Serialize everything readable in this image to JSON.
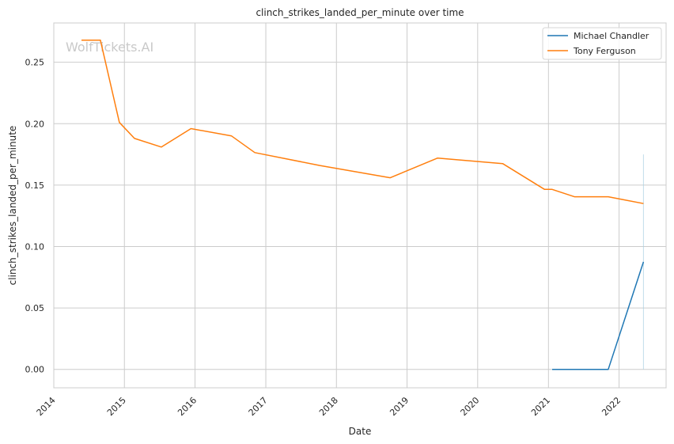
{
  "chart_data": {
    "type": "line",
    "title": "clinch_strikes_landed_per_minute over time",
    "xlabel": "Date",
    "ylabel": "clinch_strikes_landed_per_minute",
    "watermark": "WolfTickets.AI",
    "xlim": [
      "2014-01-01",
      "2022-09-01"
    ],
    "ylim": [
      -0.015,
      0.282
    ],
    "x_ticks": [
      "2014",
      "2015",
      "2016",
      "2017",
      "2018",
      "2019",
      "2020",
      "2021",
      "2022"
    ],
    "y_ticks": [
      "0.00",
      "0.05",
      "0.10",
      "0.15",
      "0.20",
      "0.25"
    ],
    "grid": true,
    "legend_position": "top-right",
    "series": [
      {
        "name": "Michael Chandler",
        "color": "#1f77b4",
        "points": [
          {
            "x": "2021-01-20",
            "y": 0.0
          },
          {
            "x": "2021-11-06",
            "y": 0.0
          },
          {
            "x": "2022-05-07",
            "y": 0.0875
          }
        ]
      },
      {
        "name": "Tony Ferguson",
        "color": "#ff7f0e",
        "points": [
          {
            "x": "2014-05-24",
            "y": 0.268
          },
          {
            "x": "2014-08-30",
            "y": 0.268
          },
          {
            "x": "2014-12-06",
            "y": 0.201
          },
          {
            "x": "2015-02-22",
            "y": 0.188
          },
          {
            "x": "2015-07-11",
            "y": 0.181
          },
          {
            "x": "2015-12-11",
            "y": 0.196
          },
          {
            "x": "2016-07-08",
            "y": 0.19
          },
          {
            "x": "2016-11-05",
            "y": 0.1765
          },
          {
            "x": "2017-10-07",
            "y": 0.166
          },
          {
            "x": "2018-10-06",
            "y": 0.156
          },
          {
            "x": "2019-06-08",
            "y": 0.172
          },
          {
            "x": "2020-05-09",
            "y": 0.1675
          },
          {
            "x": "2020-12-12",
            "y": 0.1465
          },
          {
            "x": "2021-01-20",
            "y": 0.1465
          },
          {
            "x": "2021-05-15",
            "y": 0.1405
          },
          {
            "x": "2021-11-06",
            "y": 0.1405
          },
          {
            "x": "2022-05-07",
            "y": 0.135
          }
        ]
      }
    ],
    "annotations": [
      {
        "type": "vertical-line",
        "x": "2022-05-07",
        "y_range": [
          0.0,
          0.175
        ],
        "color": "#a6cee3"
      }
    ]
  }
}
